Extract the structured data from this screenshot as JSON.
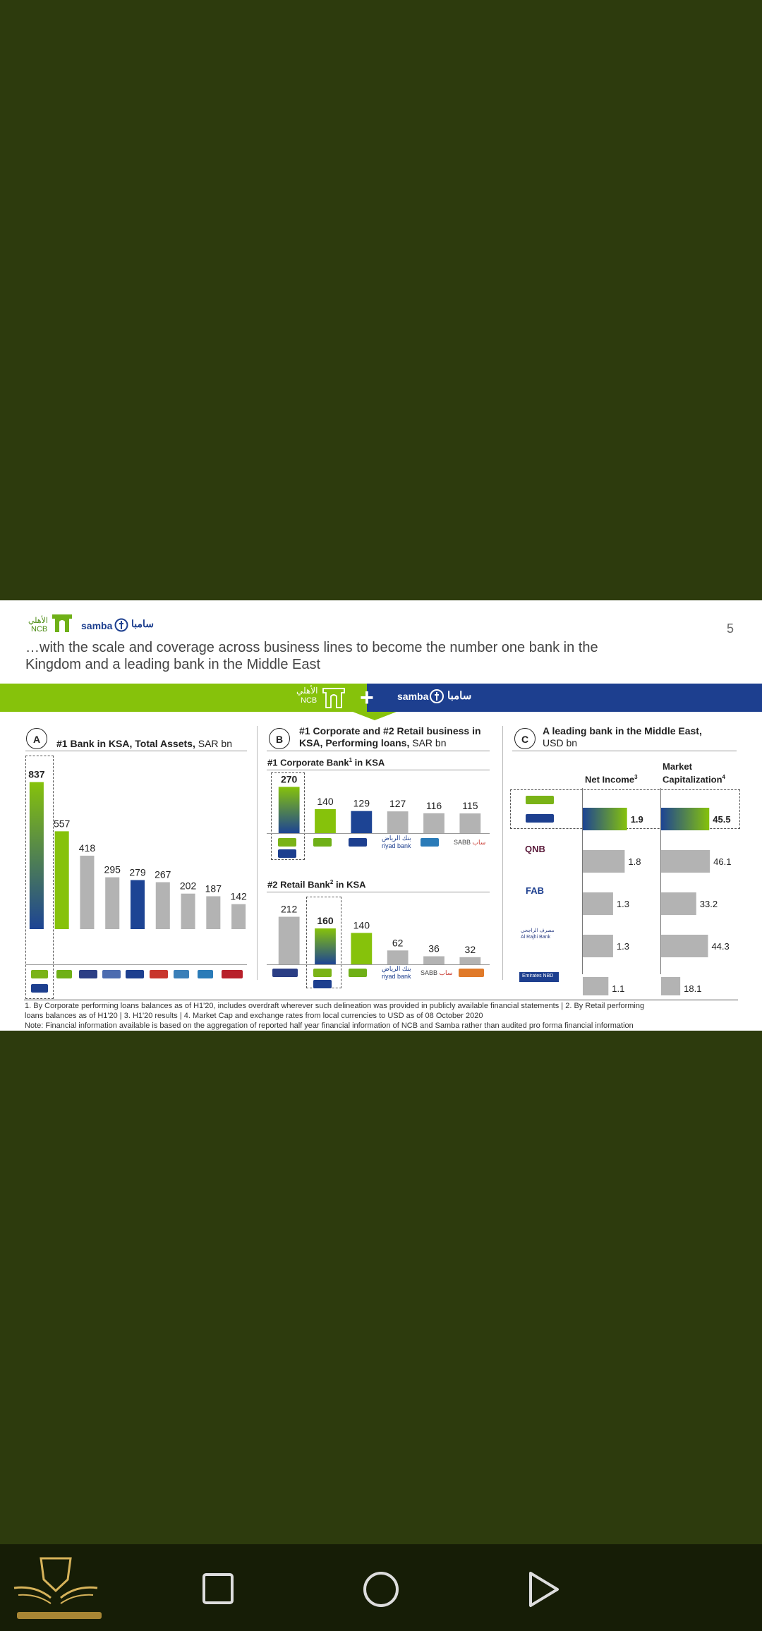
{
  "slide": {
    "page_number": "5",
    "title_line1": "…with the scale and coverage across business lines to become the number one bank in the",
    "title_line2": "Kingdom and a leading bank in the Middle East",
    "brand": {
      "ncb_arabic": "الأهلي",
      "ncb_latin": "NCB",
      "samba_latin": "samba",
      "samba_arabic": "سامبا",
      "plus": "+"
    },
    "colors": {
      "band_green": "#86c20b",
      "band_blue": "#1d3f8f",
      "ncb_green": "#7ab317",
      "bar_green": "#86c20b",
      "bar_blue": "#1d4494",
      "bar_grey": "#b3b3b3"
    },
    "footnotes": [
      "1. By Corporate performing loans balances as of H1'20, includes overdraft wherever such delineation was provided in publicly available financial statements  |  2. By Retail performing",
      "loans balances as of H1'20  |  3. H1'20 results  |  4. Market Cap and exchange rates from local currencies to USD as of 08 October 2020",
      "Note: Financial information available is based on the aggregation of reported half year financial information of NCB and Samba rather than audited pro forma financial information"
    ]
  },
  "panels": {
    "a": {
      "letter": "A",
      "title_bold": "#1 Bank in KSA, Total Assets,",
      "title_rest": " SAR bn"
    },
    "b": {
      "letter": "B",
      "title_line1": "#1 Corporate and #2 Retail business in",
      "title_line2_bold": "KSA, Performing loans,",
      "title_line2_rest": " SAR bn",
      "corporate_title": "#1 Corporate Bank",
      "corporate_sup": "1",
      "corporate_suffix": " in KSA",
      "retail_title": "#2 Retail Bank",
      "retail_sup": "2",
      "retail_suffix": " in KSA",
      "riyad_arabic": "بنك الرياض",
      "riyad_latin": "riyad bank",
      "sabb": "SABB",
      "sabb_ar": "ساب"
    },
    "c": {
      "letter": "C",
      "title_bold": "A leading bank in the Middle East,",
      "title_rest": "USD bn",
      "col1_header": "Net Income",
      "col1_sup": "3",
      "col2_header_line1": "Market",
      "col2_header_line2": "Capitalization",
      "col2_sup": "4",
      "bank_labels": [
        "QNB",
        "FAB",
        "Al Rajhi Bank",
        "Emirates NBD"
      ],
      "alrajhi_arabic": "مصرف الراجحي"
    }
  },
  "chart_data": [
    {
      "type": "bar",
      "id": "total-assets",
      "title": "#1 Bank in KSA, Total Assets, SAR bn",
      "categories": [
        "",
        "",
        "",
        "",
        "",
        "",
        "",
        "",
        ""
      ],
      "values": [
        837,
        557,
        418,
        295,
        279,
        267,
        202,
        187,
        142
      ],
      "value_labels": [
        "837",
        "557",
        "418",
        "295",
        "279",
        "267",
        "202",
        "187",
        "142"
      ],
      "bar_styles": [
        "gradient",
        "green",
        "grey",
        "grey",
        "blue",
        "grey",
        "grey",
        "grey",
        "grey"
      ],
      "highlight_index": 0,
      "ylim": [
        0,
        900
      ]
    },
    {
      "type": "bar",
      "id": "corporate-loans",
      "title": "#1 Corporate Bank1 in KSA",
      "categories": [
        "",
        "",
        "",
        "",
        "",
        ""
      ],
      "values": [
        270,
        140,
        129,
        127,
        116,
        115
      ],
      "value_labels": [
        "270",
        "140",
        "129",
        "127",
        "116",
        "115"
      ],
      "bar_styles": [
        "gradient",
        "green",
        "blue",
        "grey",
        "grey",
        "grey"
      ],
      "highlight_index": 0,
      "ylim": [
        0,
        280
      ]
    },
    {
      "type": "bar",
      "id": "retail-loans",
      "title": "#2 Retail Bank2 in KSA",
      "categories": [
        "",
        "",
        "",
        "",
        "",
        ""
      ],
      "values": [
        212,
        160,
        140,
        62,
        36,
        32
      ],
      "value_labels": [
        "212",
        "160",
        "140",
        "62",
        "36",
        "32"
      ],
      "bar_styles": [
        "grey",
        "gradient",
        "green",
        "grey",
        "grey",
        "grey"
      ],
      "highlight_index": 1,
      "ylim": [
        0,
        220
      ]
    },
    {
      "type": "bar",
      "id": "me-net-income",
      "title": "Net Income3",
      "orientation": "horizontal",
      "categories": [
        "NCB + Samba",
        "QNB",
        "FAB",
        "Al Rajhi Bank",
        "Emirates NBD"
      ],
      "values": [
        1.9,
        1.8,
        1.3,
        1.3,
        1.1
      ],
      "value_labels": [
        "1.9",
        "1.8",
        "1.3",
        "1.3",
        "1.1"
      ],
      "bar_styles": [
        "gradient",
        "grey",
        "grey",
        "grey",
        "grey"
      ],
      "xlim": [
        0,
        2.0
      ]
    },
    {
      "type": "bar",
      "id": "me-market-cap",
      "title": "Market Capitalization4",
      "orientation": "horizontal",
      "categories": [
        "NCB + Samba",
        "QNB",
        "FAB",
        "Al Rajhi Bank",
        "Emirates NBD"
      ],
      "values": [
        45.5,
        46.1,
        33.2,
        44.3,
        18.1
      ],
      "value_labels": [
        "45.5",
        "46.1",
        "33.2",
        "44.3",
        "18.1"
      ],
      "bar_styles": [
        "gradient",
        "grey",
        "grey",
        "grey",
        "grey"
      ],
      "xlim": [
        0,
        48
      ]
    }
  ]
}
